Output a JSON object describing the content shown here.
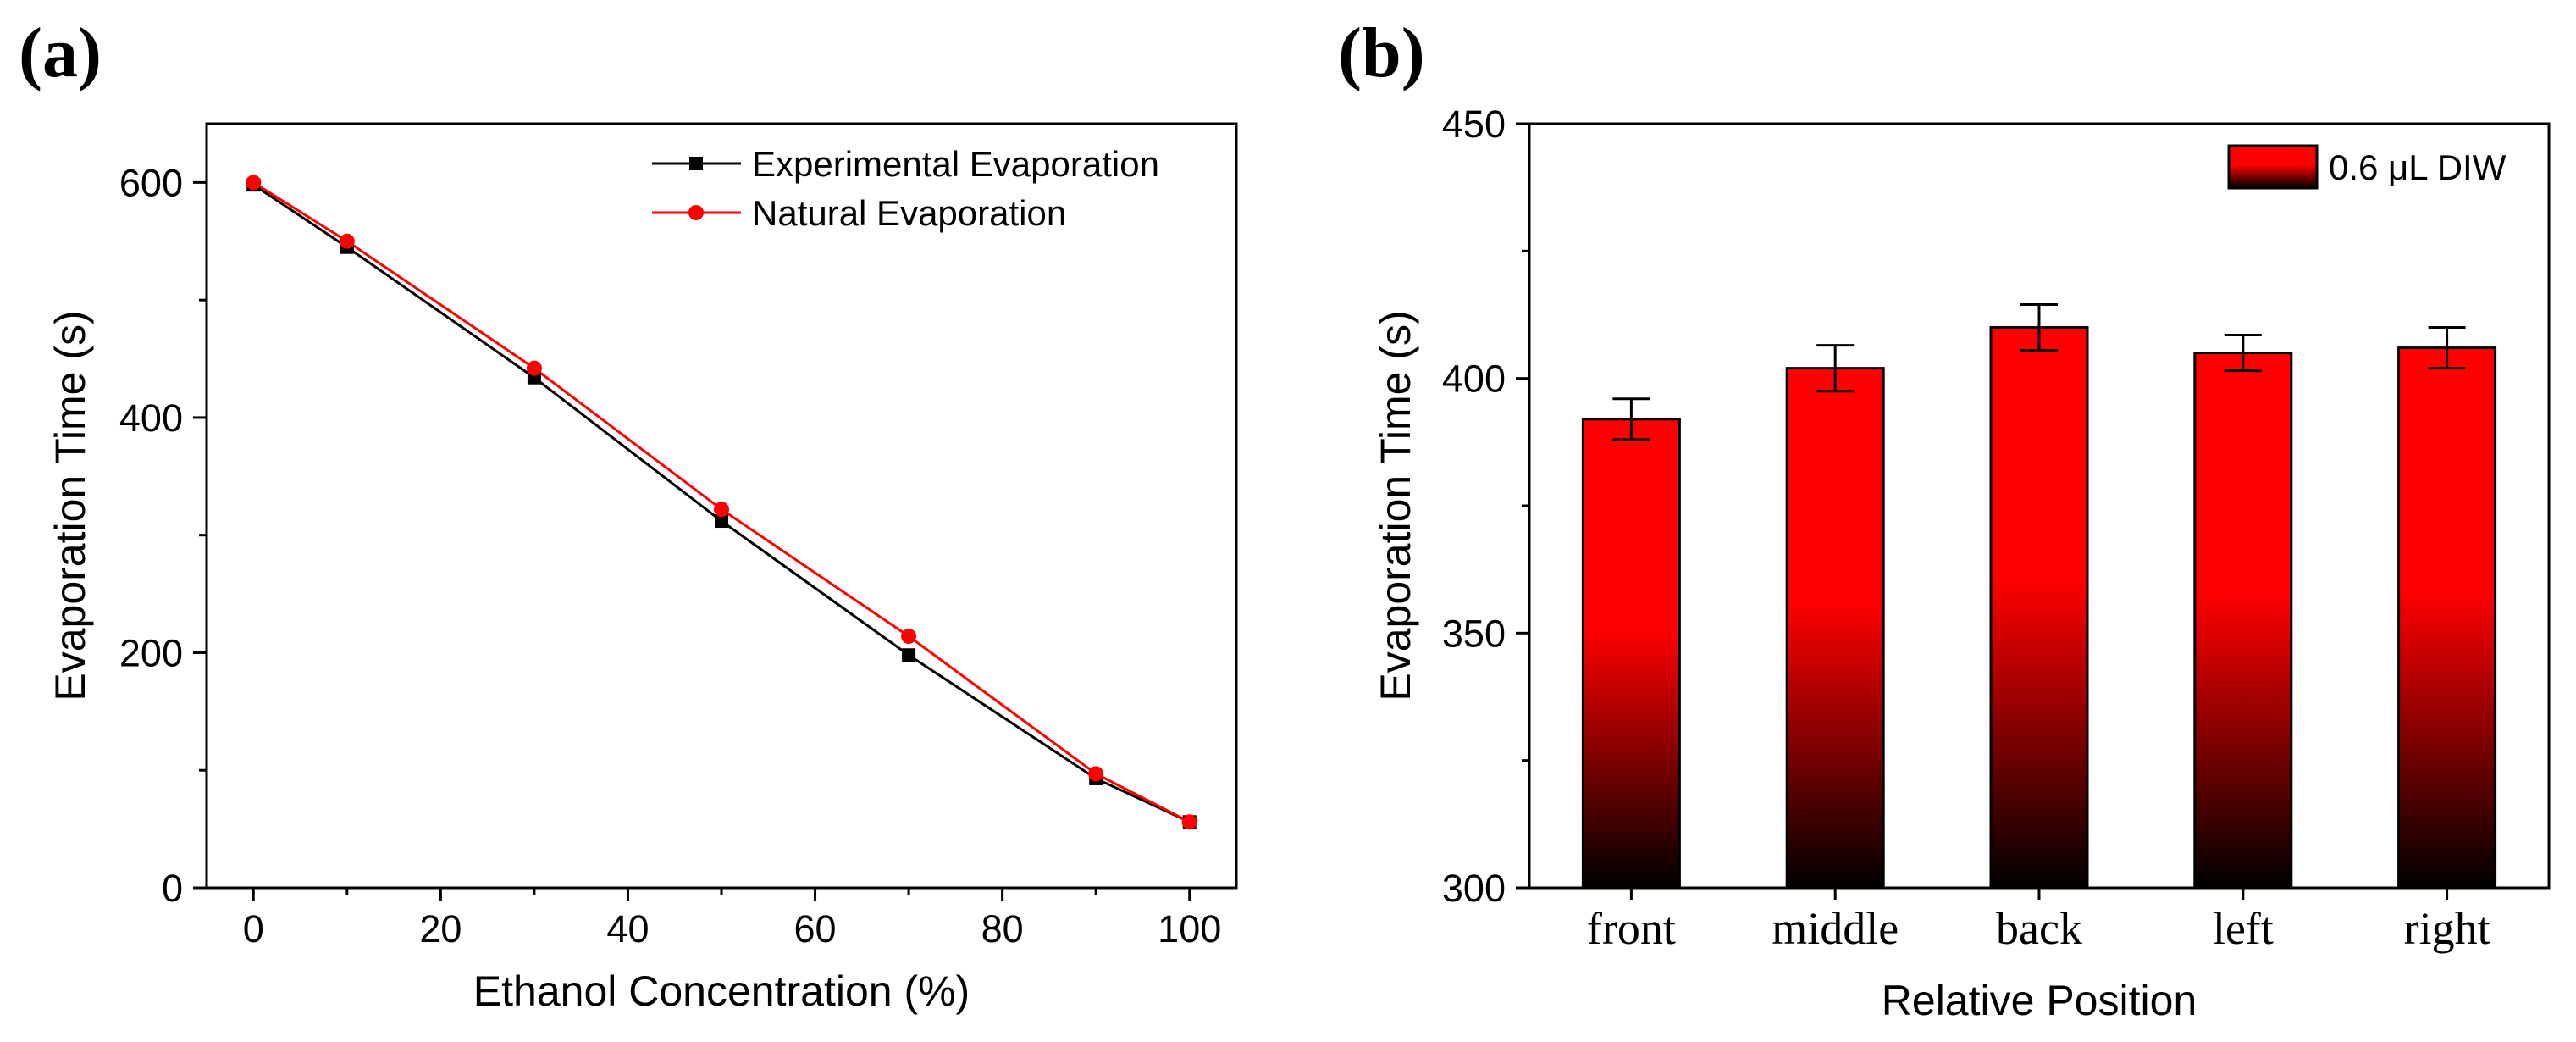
{
  "panels": {
    "a_label": "(a)",
    "b_label": "(b)"
  },
  "chart_data": [
    {
      "type": "line",
      "panel": "(a)",
      "xlabel": "Ethanol Concentration (%)",
      "ylabel": "Evaporation Time (s)",
      "xlim": [
        -5,
        105
      ],
      "ylim": [
        0,
        650
      ],
      "xticks": [
        0,
        20,
        40,
        60,
        80,
        100
      ],
      "yticks": [
        0,
        200,
        400,
        600
      ],
      "legend_position": "top-right",
      "grid": false,
      "series": [
        {
          "name": "Experimental Evaporation",
          "color": "#000000",
          "marker": "square",
          "x": [
            0,
            10,
            30,
            50,
            70,
            90,
            100
          ],
          "y": [
            598,
            545,
            434,
            312,
            198,
            93,
            56
          ]
        },
        {
          "name": "Natural Evaporation",
          "color": "#ff0000",
          "marker": "circle",
          "x": [
            0,
            10,
            30,
            50,
            70,
            90,
            100
          ],
          "y": [
            600,
            550,
            442,
            322,
            214,
            97,
            56
          ]
        }
      ]
    },
    {
      "type": "bar",
      "panel": "(b)",
      "xlabel": "Relative Position",
      "ylabel": "Evaporation Time (s)",
      "ylim": [
        300,
        450
      ],
      "yticks": [
        300,
        350,
        400,
        450
      ],
      "categories": [
        "front",
        "middle",
        "back",
        "left",
        "right"
      ],
      "legend_position": "top-right",
      "grid": false,
      "series": [
        {
          "name": "0.6 μL DIW",
          "color_top": "#ff0000",
          "color_bottom": "#000000",
          "values": [
            392,
            402,
            410,
            405,
            406
          ],
          "errors": [
            4,
            4.5,
            4.5,
            3.5,
            4
          ]
        }
      ]
    }
  ]
}
